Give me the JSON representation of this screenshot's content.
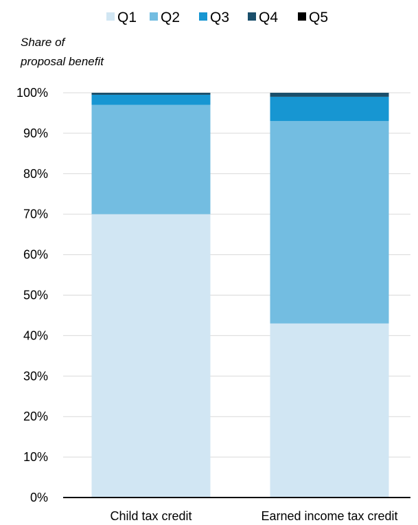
{
  "chart_data": {
    "type": "bar",
    "stacked": true,
    "title": "",
    "ylabel_lines": [
      "Share of",
      "proposal benefit"
    ],
    "xlabel": "",
    "categories": [
      "Child tax credit",
      "Earned income tax credit"
    ],
    "series": [
      {
        "name": "Q1",
        "color": "#d1e6f3",
        "values": [
          70,
          43
        ]
      },
      {
        "name": "Q2",
        "color": "#73bde1",
        "values": [
          27,
          50
        ]
      },
      {
        "name": "Q3",
        "color": "#1796d2",
        "values": [
          2.5,
          6
        ]
      },
      {
        "name": "Q4",
        "color": "#1a4f6b",
        "values": [
          0.5,
          1
        ]
      },
      {
        "name": "Q5",
        "color": "#000000",
        "values": [
          0,
          0
        ]
      }
    ],
    "ylim": [
      0,
      100
    ],
    "yticks": [
      0,
      10,
      20,
      30,
      40,
      50,
      60,
      70,
      80,
      90,
      100
    ],
    "ytick_labels": [
      "0%",
      "10%",
      "20%",
      "30%",
      "40%",
      "50%",
      "60%",
      "70%",
      "80%",
      "90%",
      "100%"
    ],
    "grid": true,
    "legend_position": "top"
  }
}
